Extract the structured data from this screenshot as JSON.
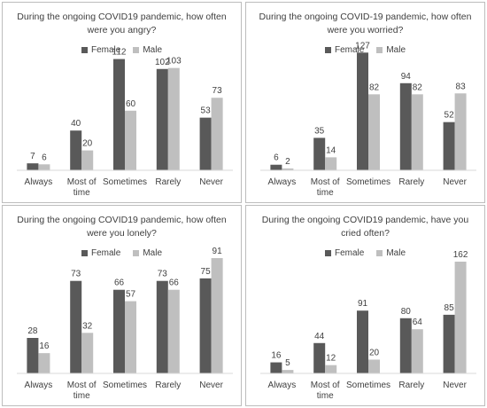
{
  "colors": {
    "female": "#595959",
    "male": "#bfbfbf",
    "axis": "#d9d9d9",
    "text": "#404040"
  },
  "chart_data": [
    {
      "type": "bar",
      "title": "During the ongoing COVID19 pandemic, how often were you angry?",
      "categories": [
        "Always",
        "Most of time",
        "Sometimes",
        "Rarely",
        "Never"
      ],
      "series": [
        {
          "name": "Female",
          "values": [
            7,
            40,
            112,
            102,
            53
          ]
        },
        {
          "name": "Male",
          "values": [
            6,
            20,
            60,
            103,
            73
          ]
        }
      ],
      "xlabel": "",
      "ylabel": "",
      "ylim": [
        0,
        125
      ],
      "legend": "top-center",
      "grid": false
    },
    {
      "type": "bar",
      "title": "During the ongoing COVID-19 pandemic, how often were you worried?",
      "categories": [
        "Always",
        "Most of time",
        "Sometimes",
        "Rarely",
        "Never"
      ],
      "series": [
        {
          "name": "Female",
          "values": [
            6,
            35,
            127,
            94,
            52
          ]
        },
        {
          "name": "Male",
          "values": [
            2,
            14,
            82,
            82,
            83
          ]
        }
      ],
      "xlabel": "",
      "ylabel": "",
      "ylim": [
        0,
        134
      ],
      "legend": "top-center",
      "grid": false
    },
    {
      "type": "bar",
      "title": "During the ongoing COVID19 pandemic, how often were you lonely?",
      "categories": [
        "Always",
        "Most of time",
        "Sometimes",
        "Rarely",
        "Never"
      ],
      "series": [
        {
          "name": "Female",
          "values": [
            28,
            73,
            66,
            73,
            75
          ]
        },
        {
          "name": "Male",
          "values": [
            16,
            32,
            57,
            66,
            91
          ]
        }
      ],
      "xlabel": "",
      "ylabel": "",
      "ylim": [
        0,
        98
      ],
      "legend": "top-center",
      "grid": false
    },
    {
      "type": "bar",
      "title": "During the ongoing COVID19 pandemic, have you cried often?",
      "categories": [
        "Always",
        "Most of time",
        "Sometimes",
        "Rarely",
        "Never"
      ],
      "series": [
        {
          "name": "Female",
          "values": [
            16,
            44,
            91,
            80,
            85
          ]
        },
        {
          "name": "Male",
          "values": [
            5,
            12,
            20,
            64,
            162
          ]
        }
      ],
      "xlabel": "",
      "ylabel": "",
      "ylim": [
        0,
        180
      ],
      "legend": "top-center",
      "grid": false
    }
  ]
}
